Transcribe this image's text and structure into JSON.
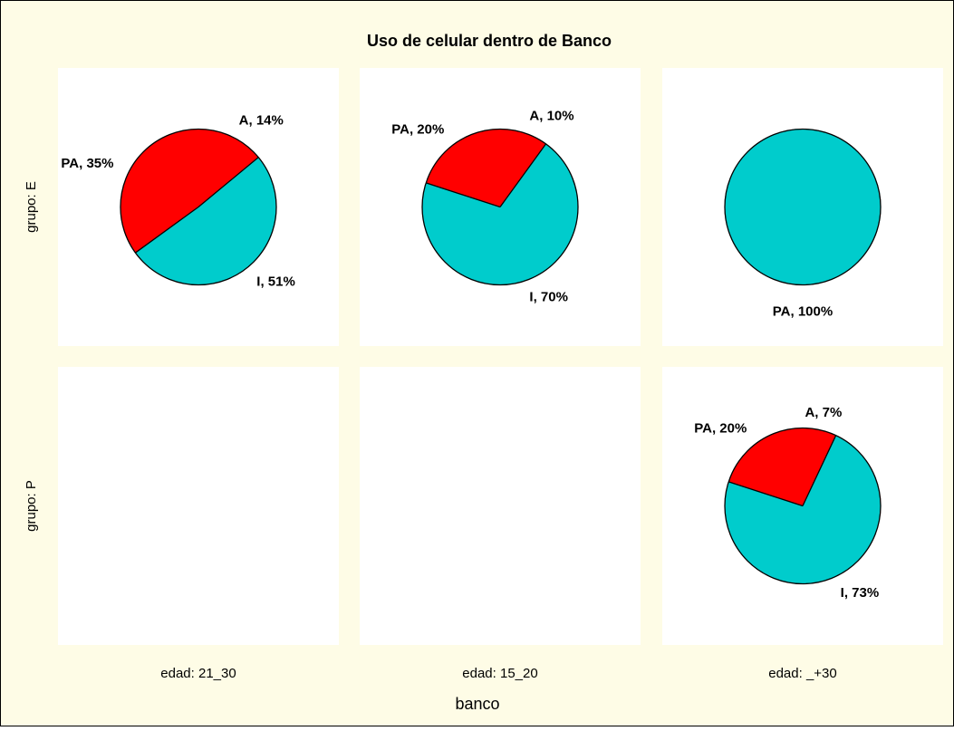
{
  "chart_data": {
    "type": "pie",
    "title": "Uso de celular dentro de Banco",
    "x_label": "banco",
    "rows": [
      "grupo: E",
      "grupo: P"
    ],
    "columns": [
      "edad: 21_30",
      "edad: 15_20",
      "edad: _+30"
    ],
    "cells": [
      [
        {
          "values": [
            14,
            51,
            35
          ],
          "value_labels": [
            "A, 14%",
            "I, 51%",
            "PA, 35%"
          ],
          "colors": [
            "#ff0000",
            "#00cccc",
            "#ff0000"
          ]
        },
        {
          "values": [
            10,
            70,
            20
          ],
          "value_labels": [
            "A, 10%",
            "I, 70%",
            "PA, 20%"
          ],
          "colors": [
            "#ff0000",
            "#00cccc",
            "#ff0000"
          ]
        },
        {
          "values": [
            100
          ],
          "value_labels": [
            "PA, 100%"
          ],
          "colors": [
            "#00cccc"
          ]
        }
      ],
      [
        null,
        null,
        {
          "values": [
            7,
            73,
            20
          ],
          "value_labels": [
            "A, 7%",
            "I, 73%",
            "PA, 20%"
          ],
          "colors": [
            "#ff0000",
            "#00cccc",
            "#ff0000"
          ]
        }
      ]
    ]
  }
}
